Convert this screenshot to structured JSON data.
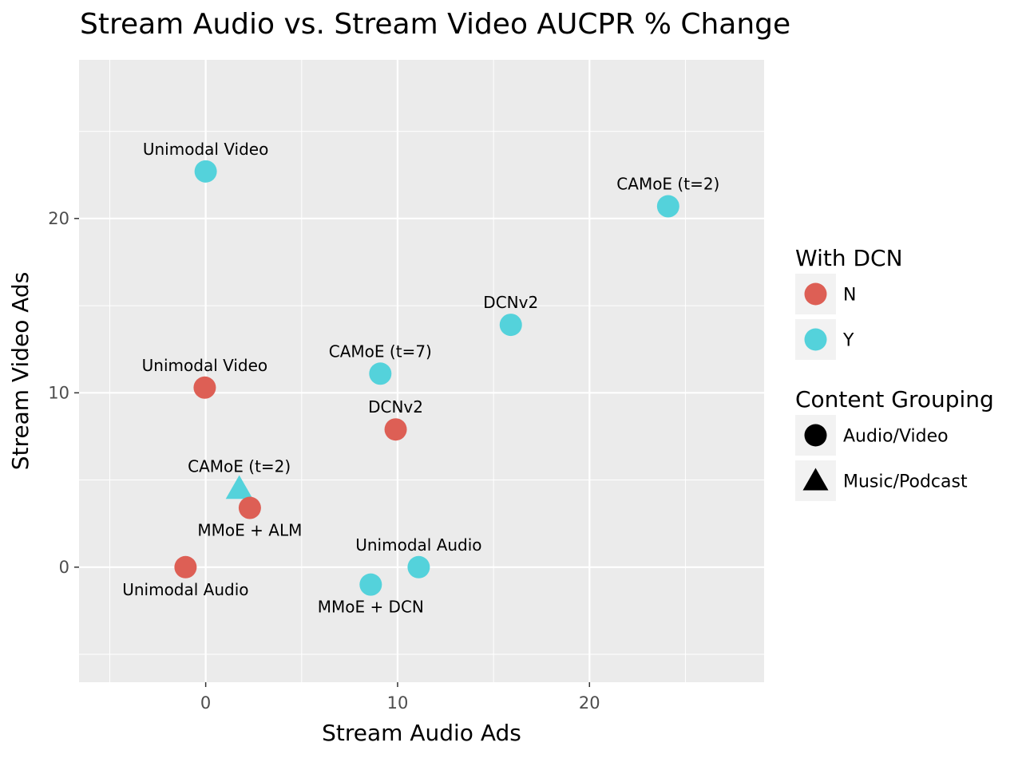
{
  "chart_data": {
    "type": "scatter",
    "title": "Stream Audio vs. Stream Video AUCPR % Change",
    "xlabel": "Stream Audio Ads",
    "ylabel": "Stream Video Ads",
    "xlim": [
      -6.6,
      29.1
    ],
    "ylim": [
      -6.6,
      29.1
    ],
    "x_ticks": [
      0,
      10,
      20
    ],
    "y_ticks": [
      0,
      10,
      20
    ],
    "x_minor_ticks": [
      -5,
      5,
      15,
      25
    ],
    "y_minor_ticks": [
      -5,
      5,
      15,
      25
    ],
    "grid": true,
    "colors": {
      "N": "#dd5f55",
      "Y": "#54d2db",
      "panel_background": "#ebebeb",
      "grid": "#ffffff",
      "legend_key_background": "#f2f2f2",
      "legend_shape": "#000000"
    },
    "points": [
      {
        "label": "Unimodal Video",
        "x": 0.0,
        "y": 22.7,
        "dcn": "Y",
        "grouping": "Audio/Video",
        "label_pos": "above"
      },
      {
        "label": "CAMoE (t=2)",
        "x": 24.1,
        "y": 20.7,
        "dcn": "Y",
        "grouping": "Audio/Video",
        "label_pos": "above"
      },
      {
        "label": "DCNv2",
        "x": 15.9,
        "y": 13.9,
        "dcn": "Y",
        "grouping": "Audio/Video",
        "label_pos": "above"
      },
      {
        "label": "CAMoE (t=7)",
        "x": 9.1,
        "y": 11.1,
        "dcn": "Y",
        "grouping": "Audio/Video",
        "label_pos": "above"
      },
      {
        "label": "Unimodal Video",
        "x": -0.05,
        "y": 10.3,
        "dcn": "N",
        "grouping": "Audio/Video",
        "label_pos": "above"
      },
      {
        "label": "DCNv2",
        "x": 9.9,
        "y": 7.9,
        "dcn": "N",
        "grouping": "Audio/Video",
        "label_pos": "above"
      },
      {
        "label": "CAMoE (t=2)",
        "x": 1.75,
        "y": 4.5,
        "dcn": "Y",
        "grouping": "Music/Podcast",
        "label_pos": "above"
      },
      {
        "label": "MMoE + ALM",
        "x": 2.3,
        "y": 3.4,
        "dcn": "N",
        "grouping": "Audio/Video",
        "label_pos": "below"
      },
      {
        "label": "Unimodal Audio",
        "x": -1.05,
        "y": 0.0,
        "dcn": "N",
        "grouping": "Audio/Video",
        "label_pos": "below"
      },
      {
        "label": "Unimodal Audio",
        "x": 11.1,
        "y": 0.0,
        "dcn": "Y",
        "grouping": "Audio/Video",
        "label_pos": "above"
      },
      {
        "label": "MMoE + DCN",
        "x": 8.6,
        "y": -1.0,
        "dcn": "Y",
        "grouping": "Audio/Video",
        "label_pos": "below"
      }
    ],
    "legend": {
      "placement": "right",
      "groups": [
        {
          "title": "With DCN",
          "items": [
            {
              "label": "N",
              "shape": "circle",
              "color_key": "N"
            },
            {
              "label": "Y",
              "shape": "circle",
              "color_key": "Y"
            }
          ]
        },
        {
          "title": "Content Grouping",
          "items": [
            {
              "label": "Audio/Video",
              "shape": "circle",
              "color_key": "legend_shape"
            },
            {
              "label": "Music/Podcast",
              "shape": "triangle",
              "color_key": "legend_shape"
            }
          ]
        }
      ]
    }
  }
}
